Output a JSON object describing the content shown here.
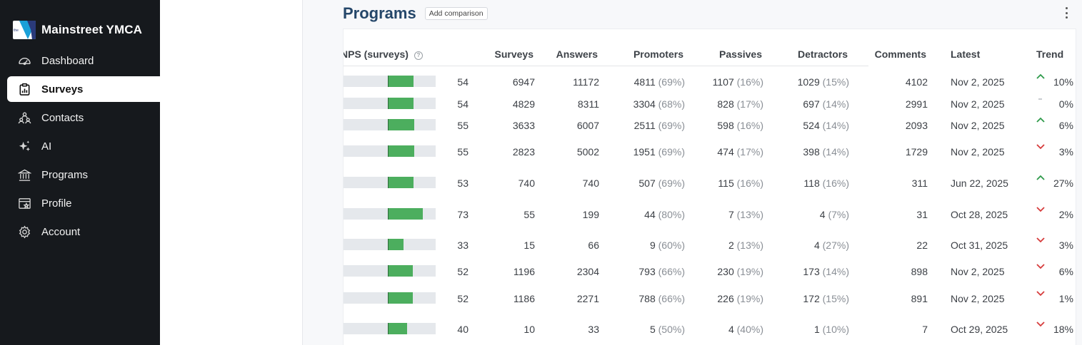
{
  "sidebar": {
    "brand": "Mainstreet YMCA",
    "logo_text": "the",
    "items": [
      {
        "label": "Dashboard",
        "icon": "gauge-icon",
        "active": false
      },
      {
        "label": "Surveys",
        "icon": "clipboard-icon",
        "active": true
      },
      {
        "label": "Contacts",
        "icon": "people-icon",
        "active": false
      },
      {
        "label": "AI",
        "icon": "sparkle-icon",
        "active": false
      },
      {
        "label": "Programs",
        "icon": "institution-icon",
        "active": false
      },
      {
        "label": "Profile",
        "icon": "profile-icon",
        "active": false
      },
      {
        "label": "Account",
        "icon": "gear-icon",
        "active": false
      }
    ]
  },
  "main": {
    "title": "Programs",
    "add_comparison": "Add comparison"
  },
  "table": {
    "headers": {
      "nps": "NPS (surveys)",
      "surveys": "Surveys",
      "answers": "Answers",
      "promoters": "Promoters",
      "passives": "Passives",
      "detractors": "Detractors",
      "comments": "Comments",
      "latest": "Latest",
      "trend": "Trend"
    },
    "help_glyph": "?",
    "rows": [
      {
        "nps": "54",
        "nps_value": 54,
        "surveys": "6947",
        "answers": "11172",
        "promoters": "4811",
        "promoters_pct": "(69%)",
        "passives": "1107",
        "passives_pct": "(16%)",
        "detractors": "1029",
        "detractors_pct": "(15%)",
        "comments": "4102",
        "latest": "Nov 2, 2025",
        "trend_dir": "up",
        "trend": "10%"
      },
      {
        "nps": "54",
        "nps_value": 54,
        "surveys": "4829",
        "answers": "8311",
        "promoters": "3304",
        "promoters_pct": "(68%)",
        "passives": "828",
        "passives_pct": "(17%)",
        "detractors": "697",
        "detractors_pct": "(14%)",
        "comments": "2991",
        "latest": "Nov 2, 2025",
        "trend_dir": "flat",
        "trend": "0%"
      },
      {
        "nps": "55",
        "nps_value": 55,
        "surveys": "3633",
        "answers": "6007",
        "promoters": "2511",
        "promoters_pct": "(69%)",
        "passives": "598",
        "passives_pct": "(16%)",
        "detractors": "524",
        "detractors_pct": "(14%)",
        "comments": "2093",
        "latest": "Nov 2, 2025",
        "trend_dir": "up",
        "trend": "6%"
      },
      {
        "nps": "55",
        "nps_value": 55,
        "surveys": "2823",
        "answers": "5002",
        "promoters": "1951",
        "promoters_pct": "(69%)",
        "passives": "474",
        "passives_pct": "(17%)",
        "detractors": "398",
        "detractors_pct": "(14%)",
        "comments": "1729",
        "latest": "Nov 2, 2025",
        "trend_dir": "down",
        "trend": "3%"
      },
      {
        "nps": "53",
        "nps_value": 53,
        "surveys": "740",
        "answers": "740",
        "promoters": "507",
        "promoters_pct": "(69%)",
        "passives": "115",
        "passives_pct": "(16%)",
        "detractors": "118",
        "detractors_pct": "(16%)",
        "comments": "311",
        "latest": "Jun 22, 2025",
        "trend_dir": "up",
        "trend": "27%"
      },
      {
        "nps": "73",
        "nps_value": 73,
        "surveys": "55",
        "answers": "199",
        "promoters": "44",
        "promoters_pct": "(80%)",
        "passives": "7",
        "passives_pct": "(13%)",
        "detractors": "4",
        "detractors_pct": "(7%)",
        "comments": "31",
        "latest": "Oct 28, 2025",
        "trend_dir": "down",
        "trend": "2%"
      },
      {
        "nps": "33",
        "nps_value": 33,
        "surveys": "15",
        "answers": "66",
        "promoters": "9",
        "promoters_pct": "(60%)",
        "passives": "2",
        "passives_pct": "(13%)",
        "detractors": "4",
        "detractors_pct": "(27%)",
        "comments": "22",
        "latest": "Oct 31, 2025",
        "trend_dir": "down",
        "trend": "3%"
      },
      {
        "nps": "52",
        "nps_value": 52,
        "surveys": "1196",
        "answers": "2304",
        "promoters": "793",
        "promoters_pct": "(66%)",
        "passives": "230",
        "passives_pct": "(19%)",
        "detractors": "173",
        "detractors_pct": "(14%)",
        "comments": "898",
        "latest": "Nov 2, 2025",
        "trend_dir": "down",
        "trend": "6%"
      },
      {
        "nps": "52",
        "nps_value": 52,
        "surveys": "1186",
        "answers": "2271",
        "promoters": "788",
        "promoters_pct": "(66%)",
        "passives": "226",
        "passives_pct": "(19%)",
        "detractors": "172",
        "detractors_pct": "(15%)",
        "comments": "891",
        "latest": "Nov 2, 2025",
        "trend_dir": "down",
        "trend": "1%"
      },
      {
        "nps": "40",
        "nps_value": 40,
        "surveys": "10",
        "answers": "33",
        "promoters": "5",
        "promoters_pct": "(50%)",
        "passives": "4",
        "passives_pct": "(40%)",
        "detractors": "1",
        "detractors_pct": "(10%)",
        "comments": "7",
        "latest": "Oct 29, 2025",
        "trend_dir": "down",
        "trend": "18%"
      }
    ]
  }
}
